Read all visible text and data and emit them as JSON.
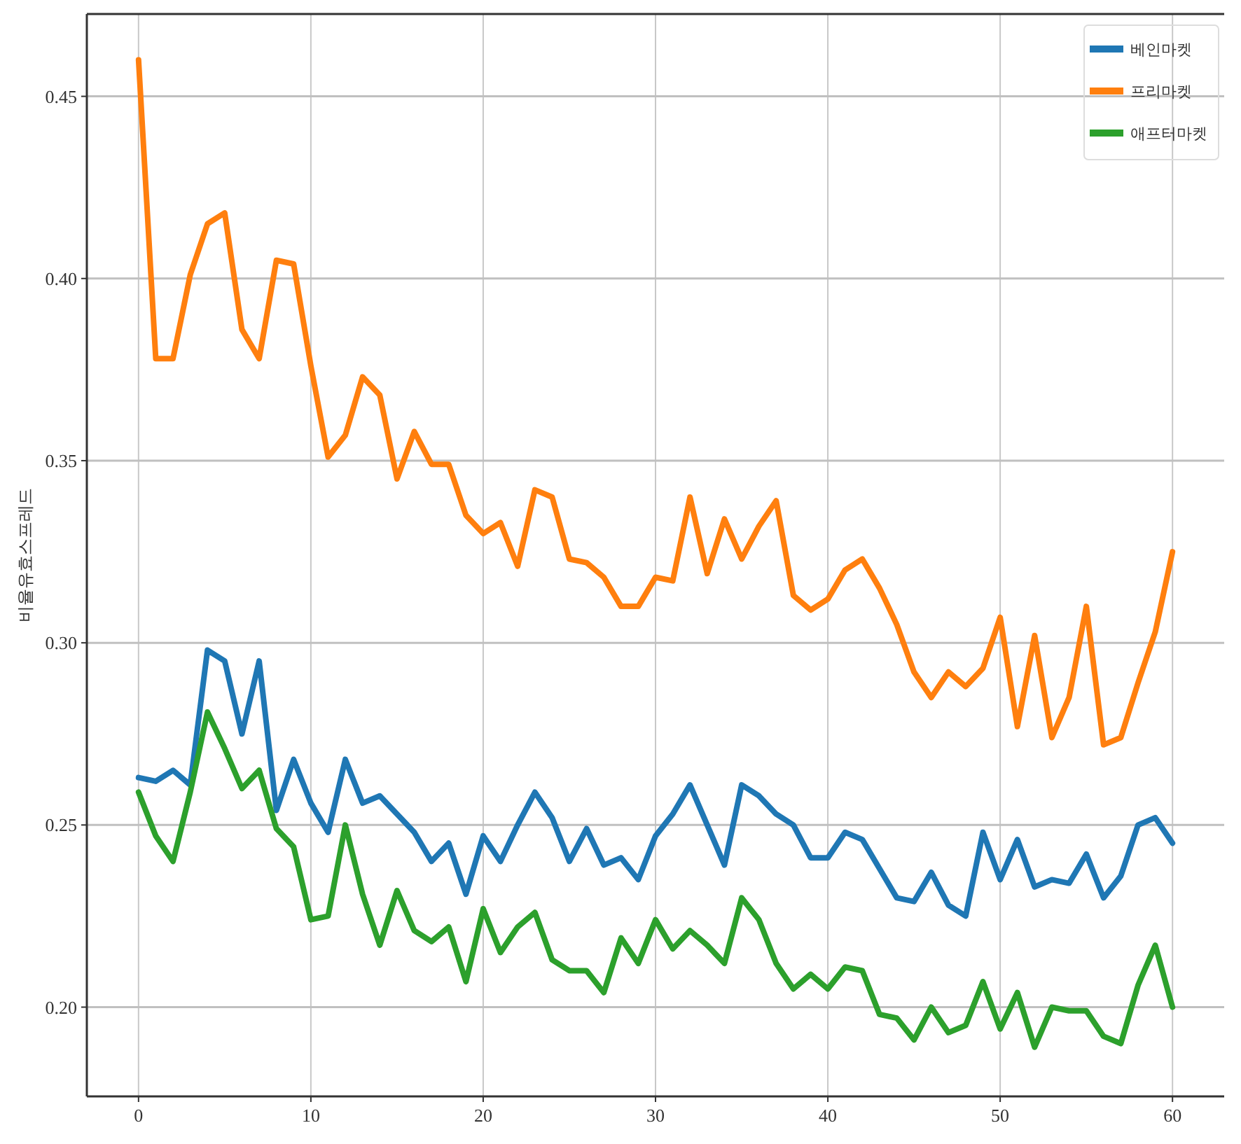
{
  "chart_data": {
    "type": "line",
    "ylabel": "비율유효스프레드",
    "x": [
      0,
      1,
      2,
      3,
      4,
      5,
      6,
      7,
      8,
      9,
      10,
      11,
      12,
      13,
      14,
      15,
      16,
      17,
      18,
      19,
      20,
      21,
      22,
      23,
      24,
      25,
      26,
      27,
      28,
      29,
      30,
      31,
      32,
      33,
      34,
      35,
      36,
      37,
      38,
      39,
      40,
      41,
      42,
      43,
      44,
      45,
      46,
      47,
      48,
      49,
      50,
      51,
      52,
      53,
      54,
      55,
      56,
      57,
      58,
      59,
      60
    ],
    "series": [
      {
        "name": "베인마켓",
        "color": "#1f77b4",
        "values": [
          0.263,
          0.262,
          0.265,
          0.261,
          0.298,
          0.295,
          0.275,
          0.295,
          0.254,
          0.268,
          0.256,
          0.248,
          0.268,
          0.256,
          0.258,
          0.253,
          0.248,
          0.24,
          0.245,
          0.231,
          0.247,
          0.24,
          0.25,
          0.259,
          0.252,
          0.24,
          0.249,
          0.239,
          0.241,
          0.235,
          0.247,
          0.253,
          0.261,
          0.25,
          0.239,
          0.261,
          0.258,
          0.253,
          0.25,
          0.241,
          0.241,
          0.248,
          0.246,
          0.238,
          0.23,
          0.229,
          0.237,
          0.228,
          0.225,
          0.248,
          0.235,
          0.246,
          0.233,
          0.235,
          0.234,
          0.242,
          0.23,
          0.236,
          0.25,
          0.252,
          0.245
        ]
      },
      {
        "name": "프리마켓",
        "color": "#ff7f0e",
        "values": [
          0.46,
          0.378,
          0.378,
          0.401,
          0.415,
          0.418,
          0.386,
          0.378,
          0.405,
          0.404,
          0.376,
          0.351,
          0.357,
          0.373,
          0.368,
          0.345,
          0.358,
          0.349,
          0.349,
          0.335,
          0.33,
          0.333,
          0.321,
          0.342,
          0.34,
          0.323,
          0.322,
          0.318,
          0.31,
          0.31,
          0.318,
          0.317,
          0.34,
          0.319,
          0.334,
          0.323,
          0.332,
          0.339,
          0.313,
          0.309,
          0.312,
          0.32,
          0.323,
          0.315,
          0.305,
          0.292,
          0.285,
          0.292,
          0.288,
          0.293,
          0.307,
          0.277,
          0.302,
          0.274,
          0.285,
          0.31,
          0.272,
          0.274,
          0.289,
          0.303,
          0.325
        ]
      },
      {
        "name": "애프터마켓",
        "color": "#2ca02c",
        "values": [
          0.259,
          0.247,
          0.24,
          0.259,
          0.281,
          0.271,
          0.26,
          0.265,
          0.249,
          0.244,
          0.224,
          0.225,
          0.25,
          0.231,
          0.217,
          0.232,
          0.221,
          0.218,
          0.222,
          0.207,
          0.227,
          0.215,
          0.222,
          0.226,
          0.213,
          0.21,
          0.21,
          0.204,
          0.219,
          0.212,
          0.224,
          0.216,
          0.221,
          0.217,
          0.212,
          0.23,
          0.224,
          0.212,
          0.205,
          0.209,
          0.205,
          0.211,
          0.21,
          0.198,
          0.197,
          0.191,
          0.2,
          0.193,
          0.195,
          0.207,
          0.194,
          0.204,
          0.189,
          0.2,
          0.199,
          0.199,
          0.192,
          0.19,
          0.206,
          0.217,
          0.2
        ]
      }
    ],
    "xlim": [
      -3,
      63
    ],
    "ylim": [
      0.1755,
      0.4726
    ],
    "xticks": [
      0,
      10,
      20,
      30,
      40,
      50,
      60
    ],
    "yticks": [
      {
        "value": 0.2,
        "label": "0.20"
      },
      0.25,
      {
        "value": 0.3,
        "label": "0.30"
      },
      0.35,
      {
        "value": 0.4,
        "label": "0.40"
      },
      0.45
    ],
    "grid": true,
    "legend": "top right",
    "line_style": "solid",
    "marker": "none"
  }
}
